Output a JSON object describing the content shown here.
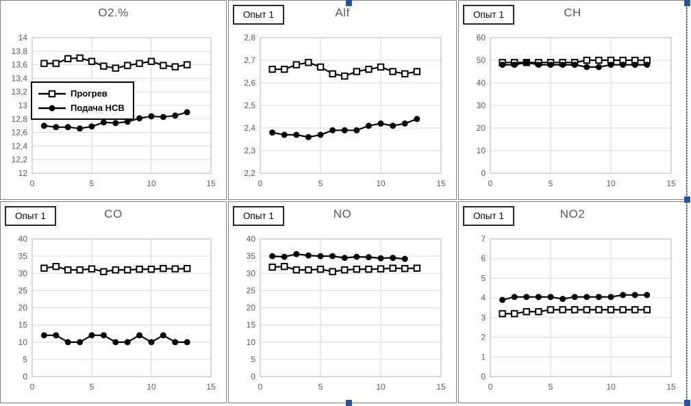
{
  "experiment_label": "Опыт 1",
  "legend": {
    "entries": [
      {
        "label": "Прогрев",
        "marker": "square"
      },
      {
        "label": "Подача НСВ",
        "marker": "circle"
      }
    ]
  },
  "colors": {
    "series": "#000000",
    "gridline": "#d9d9d9",
    "plot_border": "#bfbfbf",
    "tick_text": "#595959",
    "title_text": "#595959",
    "selection_handle": "#2e5496",
    "selection_border": "#4472c4"
  },
  "chart_data": [
    {
      "type": "line",
      "title": "O2.%",
      "show_experiment_label": false,
      "show_legend": true,
      "xlim": [
        0,
        15
      ],
      "xticks": [
        0,
        5,
        10,
        15
      ],
      "ylim": [
        12,
        14
      ],
      "yticks": [
        12,
        12.2,
        12.4,
        12.6,
        12.8,
        13,
        13.2,
        13.4,
        13.6,
        13.8,
        14
      ],
      "ytick_labels": [
        "12",
        "12,2",
        "12,4",
        "12,6",
        "12,8",
        "13",
        "13,2",
        "13,4",
        "13,6",
        "13,8",
        "14"
      ],
      "series": [
        {
          "name": "Прогрев",
          "marker": "square",
          "values": [
            13.62,
            13.62,
            13.69,
            13.7,
            13.65,
            13.58,
            13.55,
            13.59,
            13.62,
            13.65,
            13.59,
            13.57,
            13.6
          ]
        },
        {
          "name": "Подача НСВ",
          "marker": "circle",
          "values": [
            12.7,
            12.68,
            12.68,
            12.66,
            12.69,
            12.75,
            12.74,
            12.76,
            12.81,
            12.84,
            12.83,
            12.85,
            12.9
          ]
        }
      ]
    },
    {
      "type": "line",
      "title": "Alf",
      "show_experiment_label": true,
      "show_legend": false,
      "xlim": [
        0,
        15
      ],
      "xticks": [
        0,
        5,
        10,
        15
      ],
      "ylim": [
        2.2,
        2.8
      ],
      "yticks": [
        2.2,
        2.3,
        2.4,
        2.5,
        2.6,
        2.7,
        2.8
      ],
      "ytick_labels": [
        "2,2",
        "2,3",
        "2,4",
        "2,5",
        "2,6",
        "2,7",
        "2,8"
      ],
      "series": [
        {
          "name": "Прогрев",
          "marker": "square",
          "values": [
            2.66,
            2.66,
            2.68,
            2.69,
            2.67,
            2.64,
            2.63,
            2.65,
            2.66,
            2.67,
            2.65,
            2.64,
            2.65
          ]
        },
        {
          "name": "Подача НСВ",
          "marker": "circle",
          "values": [
            2.38,
            2.37,
            2.37,
            2.36,
            2.37,
            2.39,
            2.39,
            2.39,
            2.41,
            2.42,
            2.41,
            2.42,
            2.44
          ]
        }
      ]
    },
    {
      "type": "line",
      "title": "CH",
      "show_experiment_label": true,
      "show_legend": false,
      "xlim": [
        0,
        15
      ],
      "xticks": [
        0,
        5,
        10,
        15
      ],
      "ylim": [
        0,
        60
      ],
      "yticks": [
        0,
        10,
        20,
        30,
        40,
        50,
        60
      ],
      "ytick_labels": [
        "0",
        "10",
        "20",
        "30",
        "40",
        "50",
        "60"
      ],
      "series": [
        {
          "name": "Прогрев",
          "marker": "square",
          "values": [
            49,
            49,
            49,
            49,
            49,
            49,
            49,
            50,
            50,
            50,
            50,
            50,
            50
          ]
        },
        {
          "name": "Подача НСВ",
          "marker": "circle",
          "values": [
            48,
            48,
            49,
            48,
            48,
            48,
            48,
            47,
            47,
            48,
            48,
            48,
            48
          ]
        }
      ]
    },
    {
      "type": "line",
      "title": "CO",
      "show_experiment_label": true,
      "show_legend": false,
      "xlim": [
        0,
        15
      ],
      "xticks": [
        0,
        5,
        10,
        15
      ],
      "ylim": [
        0,
        40
      ],
      "yticks": [
        0,
        5,
        10,
        15,
        20,
        25,
        30,
        35,
        40
      ],
      "ytick_labels": [
        "0",
        "5",
        "10",
        "15",
        "20",
        "25",
        "30",
        "35",
        "40"
      ],
      "series": [
        {
          "name": "Прогрев",
          "marker": "square",
          "values": [
            31.5,
            32,
            31,
            31,
            31.3,
            30.5,
            31,
            31,
            31.2,
            31.2,
            31.4,
            31.3,
            31.4
          ]
        },
        {
          "name": "Подача НСВ",
          "marker": "circle",
          "values": [
            12,
            12,
            10,
            10,
            12,
            12,
            10,
            10,
            12,
            10,
            12,
            10,
            10
          ]
        }
      ]
    },
    {
      "type": "line",
      "title": "NO",
      "show_experiment_label": true,
      "show_legend": false,
      "xlim": [
        0,
        15
      ],
      "xticks": [
        0,
        5,
        10,
        15
      ],
      "ylim": [
        0,
        40
      ],
      "yticks": [
        0,
        5,
        10,
        15,
        20,
        25,
        30,
        35,
        40
      ],
      "ytick_labels": [
        "0",
        "5",
        "10",
        "15",
        "20",
        "25",
        "30",
        "35",
        "40"
      ],
      "series": [
        {
          "name": "Прогрев",
          "marker": "square",
          "values": [
            31.8,
            32,
            31,
            31,
            31.2,
            30.5,
            31,
            31.2,
            31.2,
            31.3,
            31.5,
            31.4,
            31.5
          ]
        },
        {
          "name": "Подача НСВ",
          "marker": "circle",
          "values": [
            35,
            34.8,
            35.6,
            35.2,
            35,
            35,
            34.5,
            34.8,
            34.7,
            34.4,
            34.5,
            34.2
          ]
        }
      ]
    },
    {
      "type": "line",
      "title": "NO2",
      "show_experiment_label": true,
      "show_legend": false,
      "xlim": [
        0,
        15
      ],
      "xticks": [
        0,
        5,
        10,
        15
      ],
      "ylim": [
        0,
        7
      ],
      "yticks": [
        0,
        1,
        2,
        3,
        4,
        5,
        6,
        7
      ],
      "ytick_labels": [
        "0",
        "1",
        "2",
        "3",
        "4",
        "5",
        "6",
        "7"
      ],
      "series": [
        {
          "name": "Прогрев",
          "marker": "square",
          "values": [
            3.2,
            3.2,
            3.3,
            3.3,
            3.4,
            3.4,
            3.4,
            3.4,
            3.4,
            3.4,
            3.4,
            3.4,
            3.4
          ]
        },
        {
          "name": "Подача НСВ",
          "marker": "circle",
          "values": [
            3.9,
            4.05,
            4.05,
            4.05,
            4.05,
            3.95,
            4.05,
            4.05,
            4.05,
            4.05,
            4.15,
            4.15,
            4.15
          ]
        }
      ]
    }
  ]
}
